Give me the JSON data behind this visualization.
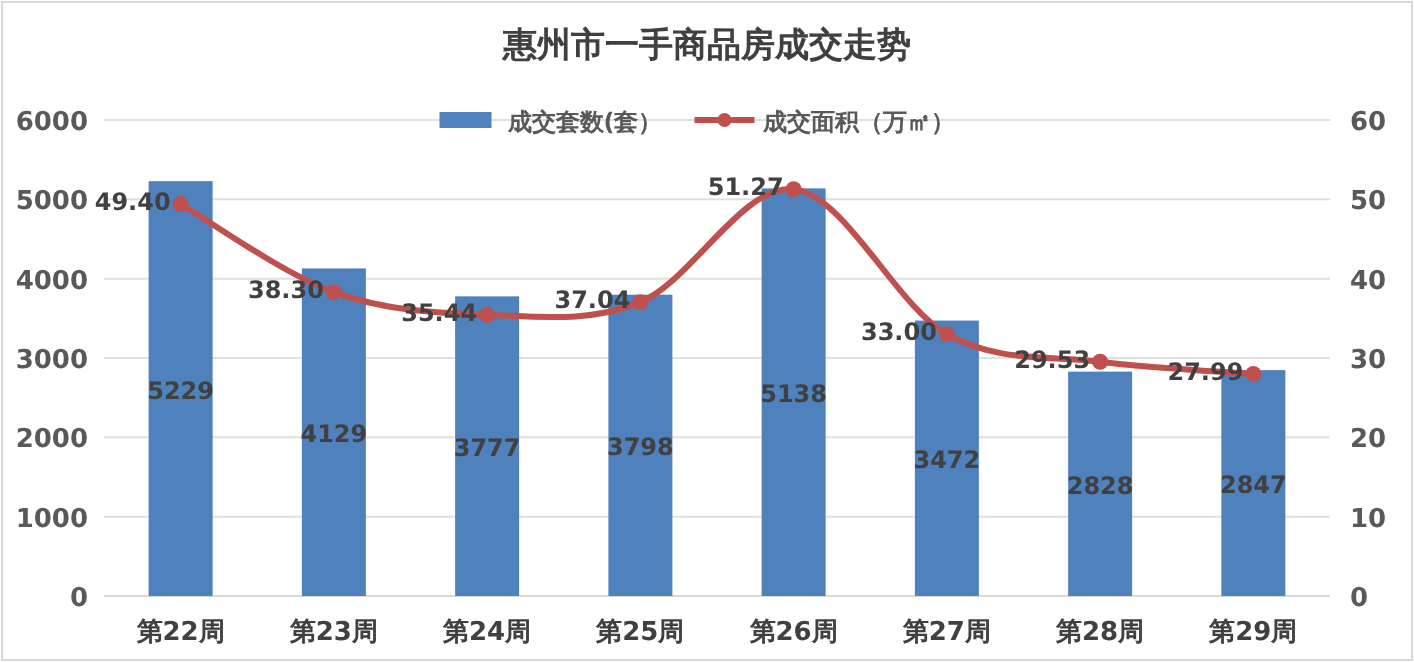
{
  "chart_data": {
    "type": "bar",
    "title": "惠州市一手商品房成交走势",
    "categories": [
      "第22周",
      "第23周",
      "第24周",
      "第25周",
      "第26周",
      "第27周",
      "第28周",
      "第29周"
    ],
    "series": [
      {
        "name": "成交套数(套）",
        "color": "#4f81bd",
        "values": [
          5229,
          4129,
          3777,
          3798,
          5138,
          3472,
          2828,
          2847
        ]
      },
      {
        "name": "成交面积（万㎡）",
        "type": "line",
        "axis": "y2",
        "color": "#c0504d",
        "marker": "circle",
        "values": [
          49.4,
          38.3,
          35.44,
          37.04,
          51.27,
          33.0,
          29.53,
          27.99
        ],
        "value_labels": [
          "49.40",
          "38.30",
          "35.44",
          "37.04",
          "51.27",
          "33.00",
          "29.53",
          "27.99"
        ]
      }
    ],
    "data_labels": true,
    "ylim": [
      0,
      6000
    ],
    "yticks": [
      0,
      1000,
      2000,
      3000,
      4000,
      5000,
      6000
    ],
    "y2lim": [
      0,
      60
    ],
    "y2ticks": [
      0,
      10,
      20,
      30,
      40,
      50,
      60
    ],
    "grid": "y",
    "legend": "top"
  }
}
